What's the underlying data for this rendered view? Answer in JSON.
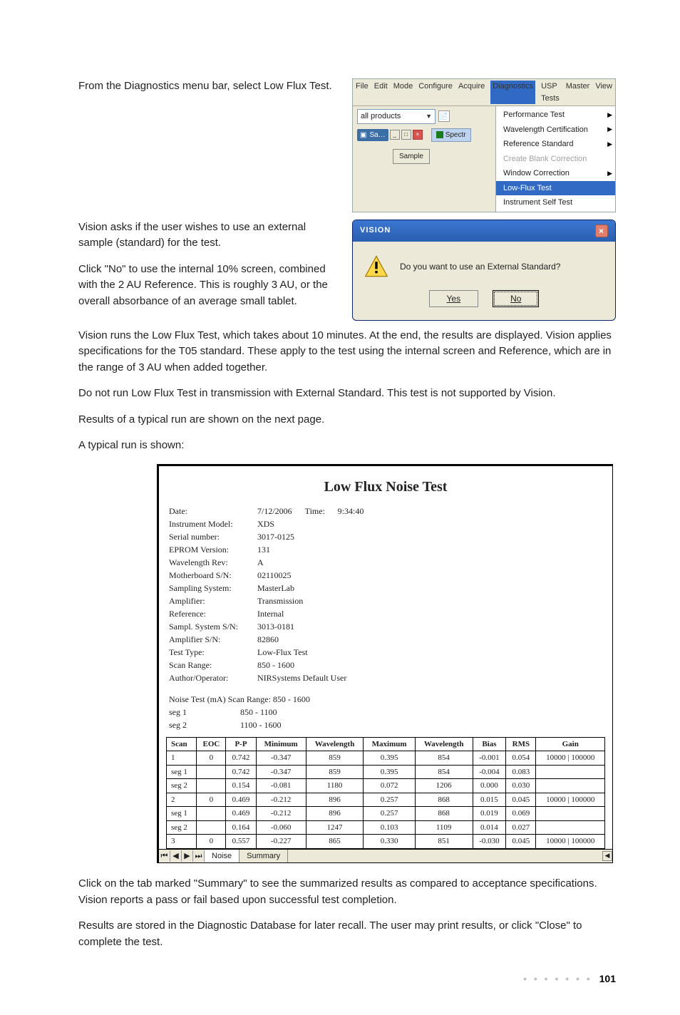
{
  "page_number": "101",
  "text": {
    "p1": "From the Diagnostics menu bar, select Low Flux Test.",
    "p2": "Vision asks if the user wishes to use an external sample (standard) for the test.",
    "p3": "Click \"No\" to use the internal 10% screen, combined with the 2 AU Reference. This is roughly 3 AU, or the overall absorbance of an average small tablet.",
    "p4": "Vision runs the Low Flux Test, which takes about 10 minutes. At the end, the results are displayed. Vision applies specifications for the T05 standard. These apply to the test using the internal screen and Reference, which are in the range of 3 AU when added together.",
    "p5": "Do not run Low Flux Test in transmission with External Standard. This test is not supported by Vision.",
    "p6": "Results of a typical run are shown on the next page.",
    "p7": "A typical run is shown:",
    "p8": "Click on the tab marked \"Summary\" to see the summarized results as compared to acceptance specifications. Vision reports a pass or fail based upon successful test completion.",
    "p9": "Results are stored in the Diagnostic Database for later recall. The user may print results, or click \"Close\" to complete the test."
  },
  "menubar": {
    "menus": [
      "File",
      "Edit",
      "Mode",
      "Configure",
      "Acquire",
      "Diagnostics",
      "USP Tests",
      "Master",
      "View"
    ],
    "active_menu_index": 5,
    "product_selector": "all products",
    "window_title": "Sa…",
    "spectr_label": "Spectr",
    "sample_button": "Sample",
    "diag_items": [
      {
        "label": "Performance Test",
        "arrow": true,
        "disabled": false
      },
      {
        "label": "Wavelength Certification",
        "arrow": true,
        "disabled": false
      },
      {
        "label": "Reference Standard",
        "arrow": true,
        "disabled": false
      },
      {
        "label": "Create Blank Correction",
        "arrow": false,
        "disabled": true
      },
      {
        "label": "Window Correction",
        "arrow": true,
        "disabled": false
      },
      {
        "label": "Low-Flux Test",
        "arrow": false,
        "disabled": false,
        "selected": true
      },
      {
        "label": "Instrument Self Test",
        "arrow": false,
        "disabled": false
      }
    ]
  },
  "dialog": {
    "title": "VISION",
    "message": "Do you want to use an External Standard?",
    "yes": "Yes",
    "no": "No"
  },
  "report": {
    "title": "Low Flux Noise Test",
    "meta": {
      "date_label": "Date:",
      "date": "7/12/2006",
      "time_label": "Time:",
      "time": "9:34:40",
      "model_label": "Instrument Model:",
      "model": "XDS",
      "serial_label": "Serial number:",
      "serial": "3017-0125",
      "eprom_label": "EPROM Version:",
      "eprom": "131",
      "wlrev_label": "Wavelength Rev:",
      "wlrev": "A",
      "mb_label": "Motherboard S/N:",
      "mb": "02110025",
      "sampsys_label": "Sampling System:",
      "sampsys": "MasterLab",
      "amp_label": "Amplifier:",
      "amp": "Transmission",
      "ref_label": "Reference:",
      "ref": "Internal",
      "sssn_label": "Sampl. System S/N:",
      "sssn": "3013-0181",
      "ampsn_label": "Amplifier S/N:",
      "ampsn": "82860",
      "tt_label": "Test Type:",
      "tt": "Low-Flux Test",
      "sr_label": "Scan Range:",
      "sr": "850 - 1600",
      "auth_label": "Author/Operator:",
      "auth": "NIRSystems Default User"
    },
    "seg": {
      "header": "Noise Test (mA)     Scan Range: 850 - 1600",
      "seg1_label": "seg 1",
      "seg1_range": "850 - 1100",
      "seg2_label": "seg 2",
      "seg2_range": "1100 - 1600"
    },
    "headers": [
      "Scan",
      "EOC",
      "P-P",
      "Minimum",
      "Wavelength",
      "Maximum",
      "Wavelength",
      "Bias",
      "RMS",
      "Gain"
    ],
    "rows": [
      [
        "1",
        "0",
        "0.742",
        "-0.347",
        "859",
        "0.395",
        "854",
        "-0.001",
        "0.054",
        "10000 | 100000"
      ],
      [
        "seg 1",
        "",
        "0.742",
        "-0.347",
        "859",
        "0.395",
        "854",
        "-0.004",
        "0.083",
        ""
      ],
      [
        "seg 2",
        "",
        "0.154",
        "-0.081",
        "1180",
        "0.072",
        "1206",
        "0.000",
        "0.030",
        ""
      ],
      [
        "2",
        "0",
        "0.469",
        "-0.212",
        "896",
        "0.257",
        "868",
        "0.015",
        "0.045",
        "10000 | 100000"
      ],
      [
        "seg 1",
        "",
        "0.469",
        "-0.212",
        "896",
        "0.257",
        "868",
        "0.019",
        "0.069",
        ""
      ],
      [
        "seg 2",
        "",
        "0.164",
        "-0.060",
        "1247",
        "0.103",
        "1109",
        "0.014",
        "0.027",
        ""
      ],
      [
        "3",
        "0",
        "0.557",
        "-0.227",
        "865",
        "0.330",
        "851",
        "-0.030",
        "0.045",
        "10000 | 100000"
      ]
    ],
    "tabs": {
      "noise": "Noise",
      "summary": "Summary"
    }
  }
}
